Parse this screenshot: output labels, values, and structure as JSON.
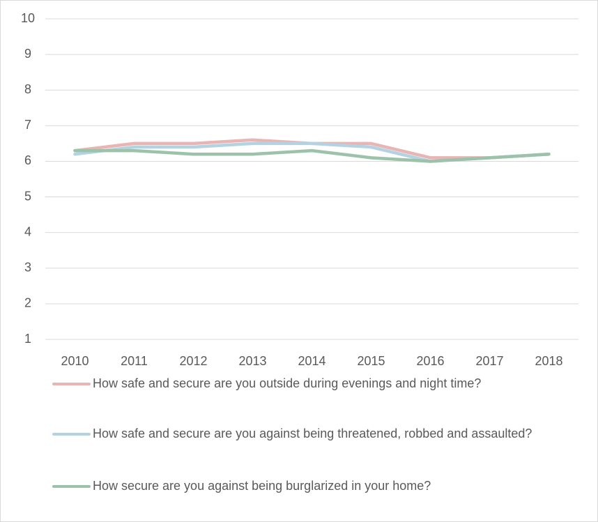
{
  "chart_data": {
    "type": "line",
    "categories": [
      "2010",
      "2011",
      "2012",
      "2013",
      "2014",
      "2015",
      "2016",
      "2017",
      "2018"
    ],
    "series": [
      {
        "name": "How safe and secure are you outside during evenings and night time?",
        "color": "#e8b4b4",
        "values": [
          6.3,
          6.5,
          6.5,
          6.6,
          6.5,
          6.5,
          6.1,
          6.1,
          6.2
        ]
      },
      {
        "name": "How safe and secure are you against being threatened, robbed and assaulted?",
        "color": "#b3d3e3",
        "values": [
          6.2,
          6.4,
          6.4,
          6.5,
          6.5,
          6.4,
          6.0,
          6.1,
          6.2
        ]
      },
      {
        "name": "How secure are you against being burglarized in your home?",
        "color": "#9cc3a9",
        "values": [
          6.3,
          6.3,
          6.2,
          6.2,
          6.3,
          6.1,
          6.0,
          6.1,
          6.2
        ]
      }
    ],
    "ylim": [
      1,
      10
    ],
    "yticks": [
      1,
      2,
      3,
      4,
      5,
      6,
      7,
      8,
      9,
      10
    ],
    "grid": true,
    "legend": "bottom"
  }
}
